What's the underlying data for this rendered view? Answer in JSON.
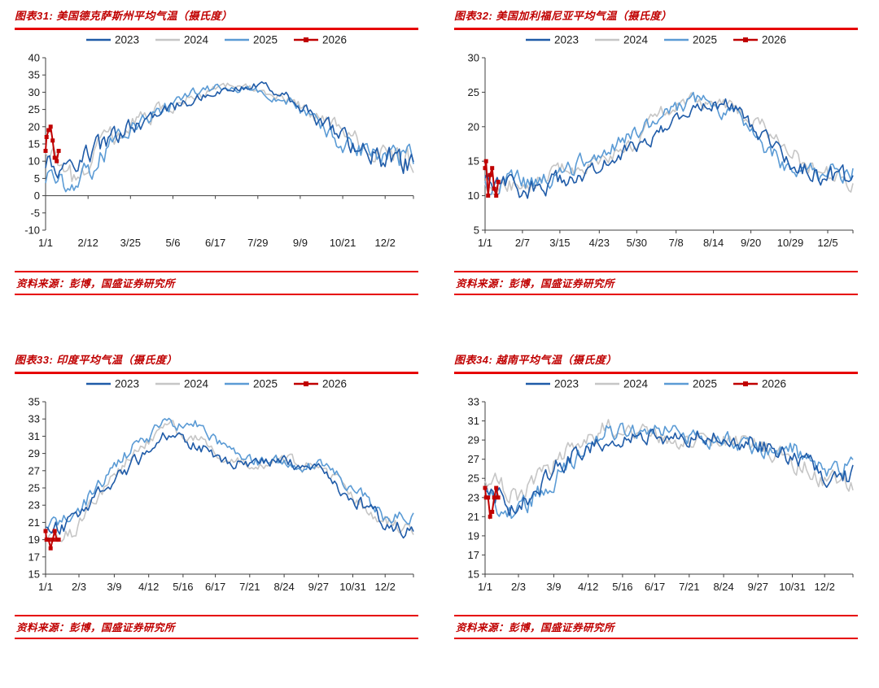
{
  "page": {
    "background": "#ffffff"
  },
  "legend": [
    "2023",
    "2024",
    "2025",
    "2026"
  ],
  "colors": {
    "series": {
      "2023": "#1F5BA8",
      "2024": "#C6C6C6",
      "2025": "#5B9BD5",
      "2026": "#C00000"
    },
    "accent_red": "#C00000",
    "rule_red": "#E60000",
    "axis": "#404040",
    "tick_text": "#1A1A1A"
  },
  "panels": [
    {
      "title": "图表31: 美国德克萨斯州平均气温（摄氏度）",
      "source": "资料来源：彭博，国盛证券研究所"
    },
    {
      "title": "图表32: 美国加利福尼亚平均气温（摄氏度）",
      "source": "资料来源：彭博，国盛证券研究所"
    },
    {
      "title": "图表33: 印度平均气温（摄氏度）",
      "source": "资料来源：彭博，国盛证券研究所"
    },
    {
      "title": "图表34: 越南平均气温（摄氏度）",
      "source": "资料来源：彭博，国盛证券研究所"
    }
  ],
  "chart_data": [
    {
      "type": "line",
      "title": "美国德克萨斯州平均气温（摄氏度）",
      "ylim": [
        -10,
        40
      ],
      "yticks": [
        -10,
        -5,
        0,
        5,
        10,
        15,
        20,
        25,
        30,
        35,
        40
      ],
      "zero_axis": true,
      "legend_position": "top",
      "xticks": {
        "labels": [
          "1/1",
          "2/12",
          "3/25",
          "5/6",
          "6/17",
          "7/29",
          "9/9",
          "10/21",
          "12/2"
        ],
        "days": [
          1,
          43,
          85,
          127,
          169,
          211,
          253,
          295,
          337
        ]
      },
      "series": [
        {
          "name": "2023",
          "days": [
            1,
            32,
            60,
            91,
            121,
            152,
            182,
            213,
            244,
            274,
            305,
            335,
            365
          ],
          "values": [
            10,
            9,
            15,
            21,
            25,
            28,
            31,
            32,
            28,
            21,
            15,
            11,
            9
          ]
        },
        {
          "name": "2024",
          "days": [
            1,
            32,
            60,
            91,
            121,
            152,
            182,
            213,
            244,
            274,
            305,
            335,
            365
          ],
          "values": [
            14,
            4,
            16,
            21,
            26,
            29,
            32,
            31,
            28,
            22,
            16,
            12,
            10
          ]
        },
        {
          "name": "2025",
          "days": [
            1,
            32,
            60,
            91,
            121,
            152,
            182,
            213,
            244,
            274,
            305,
            335,
            365
          ],
          "values": [
            5,
            2,
            13,
            20,
            26,
            30,
            32,
            30,
            27,
            20,
            13,
            12,
            11
          ]
        },
        {
          "name": "2026",
          "marker": "square",
          "days": [
            1,
            2,
            4,
            6,
            8,
            10,
            12,
            14
          ],
          "values": [
            13,
            17,
            19,
            20,
            16,
            11,
            10,
            13
          ]
        }
      ]
    },
    {
      "type": "line",
      "title": "美国加利福尼亚平均气温（摄氏度）",
      "ylim": [
        5,
        30
      ],
      "yticks": [
        5,
        10,
        15,
        20,
        25,
        30
      ],
      "zero_axis": false,
      "legend_position": "top",
      "xticks": {
        "labels": [
          "1/1",
          "2/7",
          "3/15",
          "4/23",
          "5/30",
          "7/8",
          "8/14",
          "9/20",
          "10/29",
          "12/5"
        ],
        "days": [
          1,
          38,
          75,
          114,
          151,
          190,
          227,
          264,
          303,
          340
        ]
      },
      "series": [
        {
          "name": "2023",
          "days": [
            1,
            32,
            60,
            91,
            121,
            152,
            182,
            213,
            244,
            274,
            305,
            335,
            365
          ],
          "values": [
            13,
            11,
            11,
            13,
            15,
            17,
            20,
            23,
            23,
            19,
            15,
            13,
            12
          ]
        },
        {
          "name": "2024",
          "days": [
            1,
            32,
            60,
            91,
            121,
            152,
            182,
            213,
            244,
            274,
            305,
            335,
            365
          ],
          "values": [
            12,
            11,
            13,
            14,
            16,
            18,
            23,
            24,
            23,
            20,
            16,
            13,
            11
          ]
        },
        {
          "name": "2025",
          "days": [
            1,
            32,
            60,
            91,
            121,
            152,
            182,
            213,
            244,
            274,
            305,
            335,
            365
          ],
          "values": [
            11,
            12,
            12,
            14,
            17,
            19,
            22,
            24,
            22,
            17,
            14,
            13,
            14
          ]
        },
        {
          "name": "2026",
          "marker": "square",
          "days": [
            1,
            2,
            4,
            6,
            8,
            10,
            12,
            14
          ],
          "values": [
            14,
            15,
            10,
            13,
            14,
            11,
            10,
            12
          ]
        }
      ]
    },
    {
      "type": "line",
      "title": "印度平均气温（摄氏度）",
      "ylim": [
        15,
        35
      ],
      "yticks": [
        15,
        17,
        19,
        21,
        23,
        25,
        27,
        29,
        31,
        33,
        35
      ],
      "zero_axis": false,
      "legend_position": "top",
      "xticks": {
        "labels": [
          "1/1",
          "2/3",
          "3/9",
          "4/12",
          "5/16",
          "6/17",
          "7/21",
          "8/24",
          "9/27",
          "10/31",
          "12/2"
        ],
        "days": [
          1,
          34,
          69,
          103,
          137,
          169,
          203,
          237,
          271,
          305,
          337
        ]
      },
      "series": [
        {
          "name": "2023",
          "days": [
            1,
            32,
            60,
            91,
            121,
            152,
            182,
            213,
            244,
            274,
            305,
            335,
            365
          ],
          "values": [
            20,
            21,
            25,
            28,
            31,
            30,
            28,
            28,
            28,
            27,
            24,
            21,
            20
          ]
        },
        {
          "name": "2024",
          "days": [
            1,
            32,
            60,
            91,
            121,
            152,
            182,
            213,
            244,
            274,
            305,
            335,
            365
          ],
          "values": [
            19,
            20,
            25,
            29,
            32,
            31,
            28,
            28,
            28,
            27,
            24,
            21,
            20
          ]
        },
        {
          "name": "2025",
          "days": [
            1,
            32,
            60,
            91,
            121,
            152,
            182,
            213,
            244,
            274,
            305,
            335,
            365
          ],
          "values": [
            20,
            22,
            26,
            30,
            32.5,
            32.5,
            29,
            28,
            28,
            27.5,
            25,
            22,
            21
          ]
        },
        {
          "name": "2026",
          "marker": "square",
          "days": [
            1,
            2,
            4,
            6,
            8,
            10,
            12,
            14
          ],
          "values": [
            20,
            19,
            19,
            18,
            19,
            20,
            19,
            19
          ]
        }
      ]
    },
    {
      "type": "line",
      "title": "越南平均气温（摄氏度）",
      "ylim": [
        15,
        33
      ],
      "yticks": [
        15,
        17,
        19,
        21,
        23,
        25,
        27,
        29,
        31,
        33
      ],
      "zero_axis": false,
      "legend_position": "top",
      "xticks": {
        "labels": [
          "1/1",
          "2/3",
          "3/9",
          "4/12",
          "5/16",
          "6/17",
          "7/21",
          "8/24",
          "9/27",
          "10/31",
          "12/2"
        ],
        "days": [
          1,
          34,
          69,
          103,
          137,
          169,
          203,
          237,
          271,
          305,
          337
        ]
      },
      "series": [
        {
          "name": "2023",
          "days": [
            1,
            32,
            60,
            91,
            121,
            152,
            182,
            213,
            244,
            274,
            305,
            335,
            365
          ],
          "values": [
            24,
            22,
            25,
            28,
            29,
            30,
            29,
            29.5,
            29,
            28.5,
            27,
            25.5,
            25.5
          ]
        },
        {
          "name": "2024",
          "days": [
            1,
            32,
            60,
            91,
            121,
            152,
            182,
            213,
            244,
            274,
            305,
            335,
            365
          ],
          "values": [
            25,
            23,
            26,
            28,
            30.5,
            30,
            29,
            29,
            29,
            28.5,
            27,
            25,
            24
          ]
        },
        {
          "name": "2025",
          "days": [
            1,
            32,
            60,
            91,
            121,
            152,
            182,
            213,
            244,
            274,
            305,
            335,
            365
          ],
          "values": [
            23,
            21.5,
            24,
            27,
            30,
            30,
            30,
            29,
            29,
            28,
            28,
            26,
            26
          ]
        },
        {
          "name": "2026",
          "marker": "square",
          "days": [
            1,
            2,
            4,
            6,
            8,
            10,
            12,
            14
          ],
          "values": [
            24,
            23,
            23,
            21,
            21.5,
            23,
            24,
            23
          ]
        }
      ]
    }
  ]
}
